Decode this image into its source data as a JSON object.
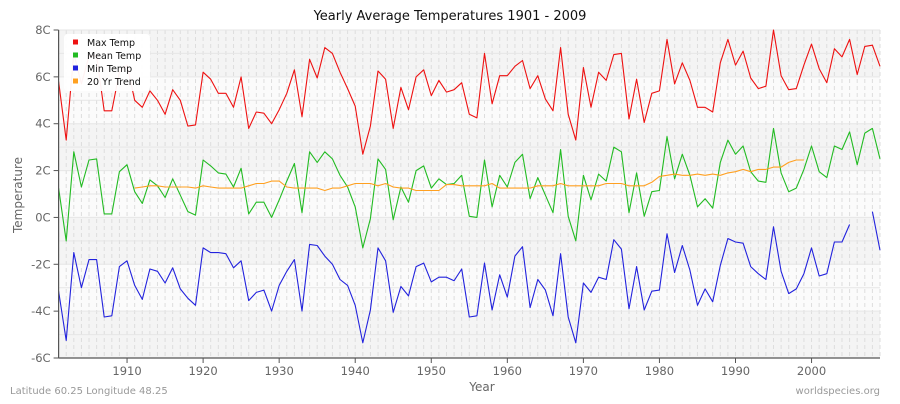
{
  "chart_data": {
    "type": "line",
    "title": "Yearly Average Temperatures 1901 - 2009",
    "xlabel": "Year",
    "ylabel": "Temperature",
    "xlim": [
      1901,
      2009
    ],
    "ylim": [
      -6,
      8
    ],
    "x_ticks": [
      1910,
      1920,
      1930,
      1940,
      1950,
      1960,
      1970,
      1980,
      1990,
      2000
    ],
    "y_ticks": [
      {
        "value": 8,
        "label": "8C"
      },
      {
        "value": 6,
        "label": "6C"
      },
      {
        "value": 4,
        "label": "4C"
      },
      {
        "value": 2,
        "label": "2C"
      },
      {
        "value": 0,
        "label": "0C"
      },
      {
        "value": -2,
        "label": "-2C"
      },
      {
        "value": -4,
        "label": "-4C"
      },
      {
        "value": -6,
        "label": "-6C"
      }
    ],
    "grid": true,
    "legend_position": "top-left",
    "x_start": 1901,
    "series": [
      {
        "name": "Max Temp",
        "color": "#ee1111",
        "values": [
          5.8,
          3.3,
          7.0,
          5.7,
          6.9,
          6.9,
          4.55,
          4.55,
          6.2,
          6.5,
          5.0,
          4.7,
          5.4,
          5.0,
          4.4,
          5.45,
          5.0,
          3.9,
          3.95,
          6.2,
          5.9,
          5.3,
          5.3,
          4.7,
          6.0,
          3.8,
          4.5,
          4.45,
          4.0,
          4.6,
          5.3,
          6.3,
          4.3,
          6.75,
          5.95,
          7.25,
          7.0,
          6.2,
          5.5,
          4.75,
          2.7,
          3.9,
          6.25,
          5.9,
          3.8,
          5.55,
          4.6,
          6.0,
          6.3,
          5.2,
          5.85,
          5.35,
          5.45,
          5.75,
          4.4,
          4.25,
          7.0,
          4.85,
          6.05,
          6.05,
          6.45,
          6.7,
          5.5,
          6.05,
          5.05,
          4.55,
          7.25,
          4.4,
          3.3,
          6.4,
          4.7,
          6.2,
          5.85,
          6.95,
          7.0,
          4.2,
          5.9,
          4.05,
          5.3,
          5.4,
          7.6,
          5.7,
          6.6,
          5.85,
          4.7,
          4.7,
          4.5,
          6.6,
          7.6,
          6.5,
          7.1,
          5.95,
          5.5,
          5.6,
          8.0,
          6.05,
          5.45,
          5.5,
          6.5,
          7.4,
          6.35,
          5.75,
          7.2,
          6.85,
          7.6,
          6.1,
          7.3,
          7.35,
          6.45
        ]
      },
      {
        "name": "Mean Temp",
        "color": "#22bb22",
        "values": [
          1.25,
          -1.0,
          2.8,
          1.3,
          2.45,
          2.5,
          0.15,
          0.15,
          1.95,
          2.25,
          1.1,
          0.6,
          1.6,
          1.35,
          0.85,
          1.65,
          0.95,
          0.25,
          0.1,
          2.45,
          2.2,
          1.9,
          1.85,
          1.3,
          2.1,
          0.15,
          0.65,
          0.65,
          0.0,
          0.75,
          1.55,
          2.3,
          0.2,
          2.8,
          2.35,
          2.8,
          2.5,
          1.8,
          1.3,
          0.45,
          -1.3,
          -0.05,
          2.5,
          2.05,
          -0.1,
          1.3,
          0.65,
          2.0,
          2.2,
          1.25,
          1.65,
          1.4,
          1.45,
          1.8,
          0.05,
          0.0,
          2.45,
          0.45,
          1.8,
          1.3,
          2.35,
          2.7,
          0.8,
          1.7,
          0.95,
          0.2,
          2.9,
          0.05,
          -1.0,
          1.8,
          0.75,
          1.85,
          1.55,
          3.0,
          2.8,
          0.2,
          1.9,
          0.05,
          1.1,
          1.15,
          3.45,
          1.65,
          2.7,
          1.8,
          0.45,
          0.8,
          0.4,
          2.35,
          3.3,
          2.7,
          3.05,
          1.95,
          1.55,
          1.5,
          3.8,
          1.9,
          1.1,
          1.25,
          2.05,
          3.05,
          1.95,
          1.7,
          3.05,
          2.9,
          3.65,
          2.25,
          3.6,
          3.8,
          2.5
        ]
      },
      {
        "name": "Min Temp",
        "color": "#2222dd",
        "values": [
          -3.15,
          -5.25,
          -1.5,
          -3.0,
          -1.8,
          -1.8,
          -4.25,
          -4.2,
          -2.1,
          -1.85,
          -2.9,
          -3.5,
          -2.2,
          -2.3,
          -2.8,
          -2.15,
          -3.05,
          -3.45,
          -3.75,
          -1.3,
          -1.5,
          -1.5,
          -1.55,
          -2.15,
          -1.85,
          -3.55,
          -3.2,
          -3.1,
          -4.0,
          -2.9,
          -2.3,
          -1.8,
          -4.0,
          -1.15,
          -1.2,
          -1.65,
          -2.0,
          -2.65,
          -2.9,
          -3.75,
          -5.35,
          -3.95,
          -1.3,
          -1.85,
          -4.05,
          -2.95,
          -3.35,
          -2.1,
          -1.95,
          -2.75,
          -2.55,
          -2.55,
          -2.7,
          -2.2,
          -4.25,
          -4.2,
          -1.95,
          -3.95,
          -2.45,
          -3.4,
          -1.65,
          -1.25,
          -3.85,
          -2.65,
          -3.1,
          -4.2,
          -1.55,
          -4.25,
          -5.35,
          -2.8,
          -3.2,
          -2.55,
          -2.65,
          -0.95,
          -1.35,
          -3.9,
          -2.1,
          -3.95,
          -3.15,
          -3.1,
          -0.7,
          -2.35,
          -1.2,
          -2.25,
          -3.75,
          -3.05,
          -3.6,
          -2.05,
          -0.9,
          -1.05,
          -1.1,
          -2.1,
          -2.4,
          -2.65,
          -0.4,
          -2.3,
          -3.25,
          -3.05,
          -2.4,
          -1.3,
          -2.5,
          -2.4,
          -1.05,
          -1.05,
          -0.3,
          null,
          null,
          0.25,
          -1.4
        ]
      },
      {
        "name": "20 Yr Trend",
        "color": "#ffa020",
        "values": [
          null,
          null,
          null,
          null,
          null,
          null,
          null,
          null,
          null,
          null,
          1.25,
          1.3,
          1.35,
          1.35,
          1.3,
          1.3,
          1.3,
          1.3,
          1.25,
          1.35,
          1.3,
          1.25,
          1.25,
          1.25,
          1.25,
          1.35,
          1.45,
          1.45,
          1.55,
          1.55,
          1.3,
          1.25,
          1.25,
          1.25,
          1.25,
          1.15,
          1.25,
          1.25,
          1.35,
          1.45,
          1.45,
          1.45,
          1.35,
          1.45,
          1.3,
          1.25,
          1.25,
          1.15,
          1.15,
          1.15,
          1.15,
          1.4,
          1.4,
          1.35,
          1.35,
          1.35,
          1.35,
          1.45,
          1.25,
          1.25,
          1.25,
          1.25,
          1.25,
          1.35,
          1.35,
          1.35,
          1.45,
          1.35,
          1.35,
          1.35,
          1.35,
          1.35,
          1.45,
          1.45,
          1.45,
          1.35,
          1.35,
          1.35,
          1.5,
          1.75,
          1.8,
          1.85,
          1.8,
          1.8,
          1.85,
          1.8,
          1.85,
          1.8,
          1.9,
          1.95,
          2.05,
          1.95,
          2.05,
          2.05,
          2.15,
          2.15,
          2.35,
          2.45,
          2.45
        ]
      }
    ]
  },
  "footer": {
    "left": "Latitude 60.25 Longitude 48.25",
    "right": "worldspecies.org"
  },
  "colors": {
    "band_dark": "#f4f4f4",
    "band_light": "#fbfbfb",
    "axis": "#555555"
  }
}
